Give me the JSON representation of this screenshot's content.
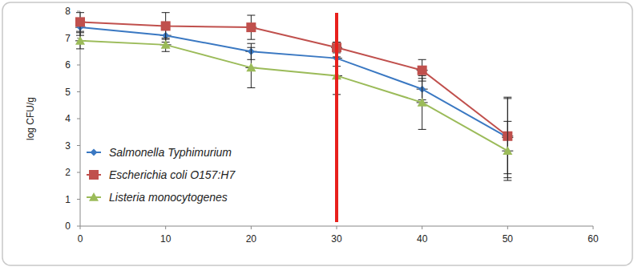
{
  "chart_data": {
    "type": "line",
    "y_label": "log CFU/g",
    "x": [
      0,
      10,
      20,
      30,
      40,
      50
    ],
    "xlim": [
      0,
      60
    ],
    "xticks": [
      0,
      10,
      20,
      30,
      40,
      50,
      60
    ],
    "ylim": [
      0,
      8
    ],
    "yticks": [
      0,
      1,
      2,
      3,
      4,
      5,
      6,
      7,
      8
    ],
    "grid": false,
    "legend": "lower left",
    "vline": 30,
    "vline_color": "#e8201c",
    "series": [
      {
        "name": "Salmonella Typhimurium",
        "color": "#3a78c2",
        "marker": "diamond",
        "values": [
          7.4,
          7.1,
          6.5,
          6.25,
          5.1,
          3.3
        ],
        "errors": [
          0.3,
          0.25,
          0.3,
          0.3,
          0.4,
          1.5
        ]
      },
      {
        "name": "Escherichia coli O157:H7",
        "color": "#c0504d",
        "marker": "square",
        "values": [
          7.6,
          7.45,
          7.4,
          6.65,
          5.8,
          3.35
        ],
        "errors": [
          0.35,
          0.5,
          0.45,
          0.2,
          0.4,
          1.4
        ]
      },
      {
        "name": "Listeria monocytogenes",
        "color": "#9bbb59",
        "marker": "triangle",
        "values": [
          6.9,
          6.75,
          5.9,
          5.6,
          4.6,
          2.8
        ],
        "errors": [
          0.3,
          0.25,
          0.75,
          0.7,
          1.0,
          1.1
        ]
      }
    ]
  }
}
